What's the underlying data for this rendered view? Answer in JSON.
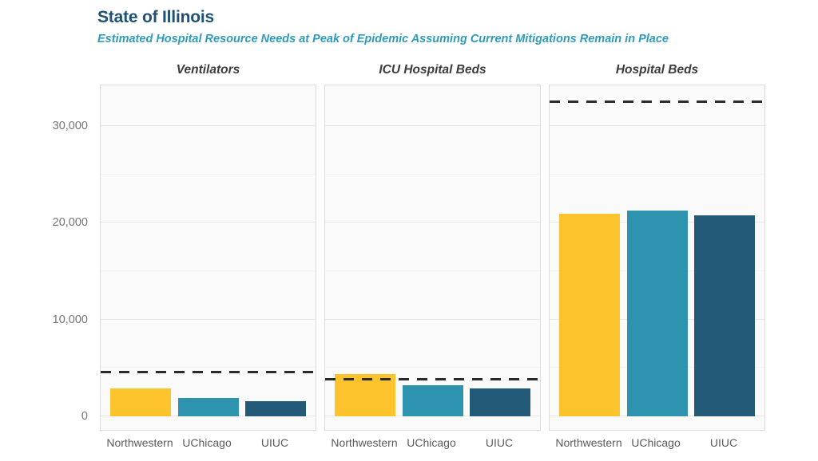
{
  "header": {
    "title": "State of Illinois",
    "subtitle": "Estimated Hospital Resource Needs at Peak of Epidemic Assuming Current Mitigations Remain in Place"
  },
  "chart_data": {
    "type": "bar",
    "layout": "three side-by-side panels sharing one y-axis, horizontal major and minor gridlines, dashed capacity reference line per panel",
    "categories": [
      "Northwestern",
      "UChicago",
      "UIUC"
    ],
    "series_colors": [
      "#FDC32D",
      "#2D93AE",
      "#235A78"
    ],
    "panels": [
      {
        "title": "Ventilators",
        "values": [
          2900,
          1900,
          1600
        ],
        "capacity_line": 4600
      },
      {
        "title": "ICU Hospital Beds",
        "values": [
          4400,
          3200,
          2900
        ],
        "capacity_line": 3800
      },
      {
        "title": "Hospital Beds",
        "values": [
          20900,
          21300,
          20800
        ],
        "capacity_line": 32500
      }
    ],
    "ylim": [
      0,
      34200
    ],
    "yticks": [
      0,
      10000,
      20000,
      30000
    ],
    "ytick_labels": [
      "0",
      "10,000",
      "20,000",
      "30,000"
    ],
    "minor_yticks": [
      5000,
      15000,
      25000
    ],
    "capacity_line_style": "dashed",
    "colors": {
      "title": "#1F5173",
      "subtitle": "#2E9BB9",
      "capacity_line": "#2B2B2B",
      "panel_background": "#FAFAFA",
      "panel_border": "#DCDCDC"
    }
  }
}
